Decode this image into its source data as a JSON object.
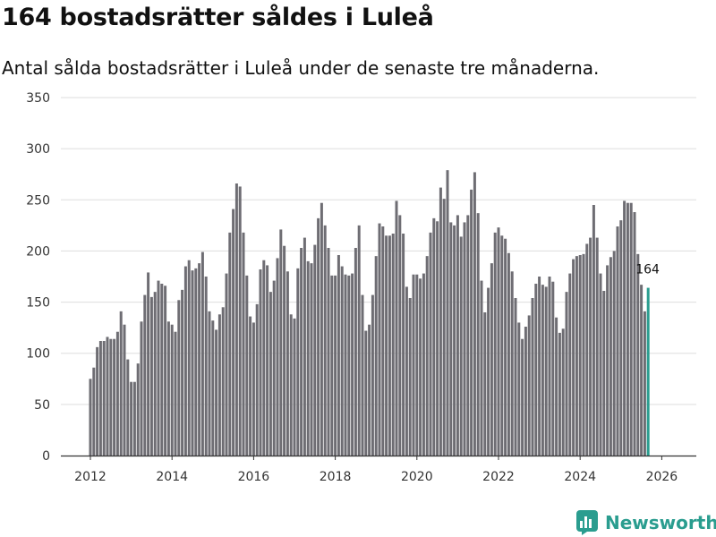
{
  "title": "164 bostadsrätter såldes i Luleå",
  "subtitle": "Antal sålda bostadsrätter i Luleå under de senaste tre månaderna.",
  "brand": "Newsworthy",
  "colors": {
    "bar": "#6e6d73",
    "highlight": "#2a9d8f",
    "grid": "#dddddd",
    "axis": "#333333"
  },
  "chart_data": {
    "type": "bar",
    "title": "164 bostadsrätter såldes i Luleå",
    "xlabel": "",
    "ylabel": "",
    "ylim": [
      0,
      350
    ],
    "yticks": [
      0,
      50,
      100,
      150,
      200,
      250,
      300,
      350
    ],
    "xticks": [
      "2012",
      "2014",
      "2016",
      "2018",
      "2020",
      "2022",
      "2024",
      "2026"
    ],
    "series_start": "2012-01",
    "frequency": "monthly",
    "values": [
      75,
      86,
      106,
      112,
      112,
      116,
      114,
      114,
      121,
      141,
      128,
      94,
      72,
      72,
      90,
      131,
      157,
      179,
      155,
      160,
      171,
      168,
      166,
      131,
      128,
      121,
      152,
      162,
      185,
      191,
      181,
      183,
      188,
      199,
      175,
      141,
      132,
      123,
      138,
      145,
      178,
      218,
      241,
      266,
      263,
      218,
      176,
      136,
      130,
      148,
      182,
      191,
      186,
      160,
      171,
      193,
      221,
      205,
      180,
      138,
      134,
      183,
      203,
      213,
      190,
      188,
      206,
      232,
      247,
      225,
      203,
      176,
      176,
      196,
      185,
      177,
      176,
      178,
      203,
      225,
      157,
      122,
      128,
      157,
      195,
      227,
      224,
      215,
      215,
      217,
      249,
      235,
      217,
      165,
      154,
      177,
      177,
      173,
      178,
      195,
      218,
      232,
      229,
      262,
      251,
      279,
      228,
      225,
      235,
      214,
      228,
      235,
      260,
      277,
      237,
      171,
      140,
      164,
      188,
      218,
      223,
      215,
      212,
      198,
      180,
      154,
      130,
      114,
      126,
      137,
      154,
      168,
      175,
      167,
      165,
      175,
      170,
      135,
      120,
      124,
      160,
      178,
      192,
      195,
      196,
      197,
      207,
      213,
      245,
      213,
      178,
      161,
      186,
      194,
      200,
      224,
      230,
      249,
      247,
      247,
      238,
      197,
      167,
      141,
      164
    ],
    "highlight_last": true,
    "annotation": {
      "text": "164",
      "target": "last"
    }
  }
}
